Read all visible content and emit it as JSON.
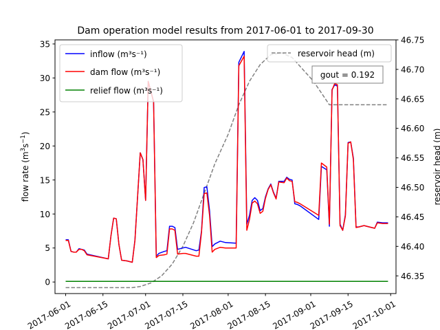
{
  "chart_data": {
    "type": "line",
    "title": "Dam operation model results from 2017-06-01 to 2017-09-30",
    "xlabel": "",
    "ylabel": "flow rate (m3s-1)",
    "ylabel_right": "reservoir head (m)",
    "xlim": [
      "2017-05-28",
      "2017-10-03"
    ],
    "ylim": [
      -1.7,
      35.6
    ],
    "ylim_right": [
      46.32,
      46.75
    ],
    "x_ticks": [
      "2017-06-01",
      "2017-06-15",
      "2017-07-01",
      "2017-07-15",
      "2017-08-01",
      "2017-08-15",
      "2017-09-01",
      "2017-09-15",
      "2017-10-01"
    ],
    "y_ticks": [
      "0",
      "5",
      "10",
      "15",
      "20",
      "25",
      "30",
      "35"
    ],
    "y_ticks_right": [
      "46.35",
      "46.40",
      "46.45",
      "46.50",
      "46.55",
      "46.60",
      "46.65",
      "46.70",
      "46.75"
    ],
    "annotation": "gout = 0.192",
    "legend_left_position": "top-left",
    "legend_right_position": "top-right",
    "grid": false,
    "series": [
      {
        "name": "inflow (m3s-1)",
        "legend_label": "inflow (m³s⁻¹)",
        "axis": "left",
        "color": "#0000ff",
        "style": "solid",
        "points": [
          [
            "2017-06-01",
            6.2
          ],
          [
            "2017-06-02",
            6.2
          ],
          [
            "2017-06-03",
            4.5
          ],
          [
            "2017-06-04",
            4.4
          ],
          [
            "2017-06-05",
            4.4
          ],
          [
            "2017-06-06",
            4.9
          ],
          [
            "2017-06-07",
            4.8
          ],
          [
            "2017-06-08",
            4.7
          ],
          [
            "2017-06-09",
            4.1
          ],
          [
            "2017-06-17",
            3.4
          ],
          [
            "2017-06-18",
            6.8
          ],
          [
            "2017-06-19",
            9.4
          ],
          [
            "2017-06-20",
            9.3
          ],
          [
            "2017-06-21",
            5.5
          ],
          [
            "2017-06-22",
            3.2
          ],
          [
            "2017-06-24",
            3.1
          ],
          [
            "2017-06-26",
            2.9
          ],
          [
            "2017-06-27",
            6.2
          ],
          [
            "2017-06-28",
            12.5
          ],
          [
            "2017-06-29",
            19.0
          ],
          [
            "2017-06-30",
            18.0
          ],
          [
            "2017-07-01",
            12.0
          ],
          [
            "2017-07-02",
            29.5
          ],
          [
            "2017-07-04",
            26.5
          ],
          [
            "2017-07-05",
            3.8
          ],
          [
            "2017-07-06",
            4.2
          ],
          [
            "2017-07-08",
            4.5
          ],
          [
            "2017-07-09",
            4.6
          ],
          [
            "2017-07-10",
            8.2
          ],
          [
            "2017-07-11",
            8.2
          ],
          [
            "2017-07-12",
            8.0
          ],
          [
            "2017-07-13",
            4.8
          ],
          [
            "2017-07-15",
            5.0
          ],
          [
            "2017-07-16",
            5.1
          ],
          [
            "2017-07-20",
            4.6
          ],
          [
            "2017-07-21",
            4.7
          ],
          [
            "2017-07-22",
            7.5
          ],
          [
            "2017-07-23",
            13.9
          ],
          [
            "2017-07-24",
            14.0
          ],
          [
            "2017-07-25",
            10.5
          ],
          [
            "2017-07-26",
            5.2
          ],
          [
            "2017-07-27",
            5.6
          ],
          [
            "2017-07-29",
            6.0
          ],
          [
            "2017-07-31",
            5.8
          ],
          [
            "2017-08-04",
            5.7
          ],
          [
            "2017-08-05",
            32.3
          ],
          [
            "2017-08-07",
            33.9
          ],
          [
            "2017-08-08",
            8.5
          ],
          [
            "2017-08-09",
            9.8
          ],
          [
            "2017-08-10",
            12.0
          ],
          [
            "2017-08-11",
            12.4
          ],
          [
            "2017-08-12",
            12.0
          ],
          [
            "2017-08-13",
            10.5
          ],
          [
            "2017-08-14",
            10.8
          ],
          [
            "2017-08-15",
            12.5
          ],
          [
            "2017-08-16",
            13.7
          ],
          [
            "2017-08-17",
            14.4
          ],
          [
            "2017-08-18",
            13.2
          ],
          [
            "2017-08-19",
            12.3
          ],
          [
            "2017-08-20",
            14.8
          ],
          [
            "2017-08-22",
            14.8
          ],
          [
            "2017-08-23",
            15.4
          ],
          [
            "2017-08-24",
            15.1
          ],
          [
            "2017-08-25",
            15.0
          ],
          [
            "2017-08-26",
            11.5
          ],
          [
            "2017-08-27",
            11.4
          ],
          [
            "2017-08-28",
            11.2
          ],
          [
            "2017-09-04",
            9.2
          ],
          [
            "2017-09-05",
            17.0
          ],
          [
            "2017-09-07",
            16.5
          ],
          [
            "2017-09-08",
            8.2
          ],
          [
            "2017-09-09",
            28.3
          ],
          [
            "2017-09-10",
            29.0
          ],
          [
            "2017-09-11",
            28.8
          ],
          [
            "2017-09-12",
            8.5
          ],
          [
            "2017-09-13",
            7.6
          ],
          [
            "2017-09-14",
            9.9
          ],
          [
            "2017-09-15",
            20.5
          ],
          [
            "2017-09-16",
            20.6
          ],
          [
            "2017-09-17",
            18.2
          ],
          [
            "2017-09-18",
            8.1
          ],
          [
            "2017-09-19",
            8.1
          ],
          [
            "2017-09-21",
            8.3
          ],
          [
            "2017-09-23",
            8.1
          ],
          [
            "2017-09-25",
            7.9
          ],
          [
            "2017-09-26",
            8.8
          ],
          [
            "2017-09-28",
            8.7
          ],
          [
            "2017-09-30",
            8.7
          ]
        ]
      },
      {
        "name": "dam flow (m3s-1)",
        "legend_label": "dam flow (m³s⁻¹)",
        "axis": "left",
        "color": "#ff0000",
        "style": "solid",
        "points": [
          [
            "2017-06-01",
            6.1
          ],
          [
            "2017-06-02",
            6.1
          ],
          [
            "2017-06-03",
            4.5
          ],
          [
            "2017-06-04",
            4.4
          ],
          [
            "2017-06-05",
            4.4
          ],
          [
            "2017-06-06",
            4.8
          ],
          [
            "2017-06-07",
            4.8
          ],
          [
            "2017-06-08",
            4.6
          ],
          [
            "2017-06-09",
            4.0
          ],
          [
            "2017-06-17",
            3.4
          ],
          [
            "2017-06-18",
            6.8
          ],
          [
            "2017-06-19",
            9.4
          ],
          [
            "2017-06-20",
            9.3
          ],
          [
            "2017-06-21",
            5.5
          ],
          [
            "2017-06-22",
            3.2
          ],
          [
            "2017-06-24",
            3.1
          ],
          [
            "2017-06-26",
            2.9
          ],
          [
            "2017-06-27",
            6.1
          ],
          [
            "2017-06-28",
            12.5
          ],
          [
            "2017-06-29",
            19.0
          ],
          [
            "2017-06-30",
            18.0
          ],
          [
            "2017-07-01",
            12.0
          ],
          [
            "2017-07-02",
            29.5
          ],
          [
            "2017-07-04",
            26.5
          ],
          [
            "2017-07-05",
            3.6
          ],
          [
            "2017-07-06",
            3.9
          ],
          [
            "2017-07-08",
            4.0
          ],
          [
            "2017-07-09",
            4.1
          ],
          [
            "2017-07-10",
            7.8
          ],
          [
            "2017-07-11",
            7.8
          ],
          [
            "2017-07-12",
            7.6
          ],
          [
            "2017-07-13",
            4.1
          ],
          [
            "2017-07-15",
            4.2
          ],
          [
            "2017-07-16",
            4.2
          ],
          [
            "2017-07-20",
            3.8
          ],
          [
            "2017-07-21",
            3.8
          ],
          [
            "2017-07-22",
            7.3
          ],
          [
            "2017-07-23",
            13.0
          ],
          [
            "2017-07-24",
            13.1
          ],
          [
            "2017-07-25",
            9.8
          ],
          [
            "2017-07-26",
            4.4
          ],
          [
            "2017-07-27",
            4.8
          ],
          [
            "2017-07-29",
            5.1
          ],
          [
            "2017-07-31",
            5.0
          ],
          [
            "2017-08-04",
            5.0
          ],
          [
            "2017-08-05",
            31.8
          ],
          [
            "2017-08-07",
            33.2
          ],
          [
            "2017-08-08",
            7.6
          ],
          [
            "2017-08-09",
            9.2
          ],
          [
            "2017-08-10",
            11.6
          ],
          [
            "2017-08-11",
            11.9
          ],
          [
            "2017-08-12",
            11.5
          ],
          [
            "2017-08-13",
            10.1
          ],
          [
            "2017-08-14",
            10.4
          ],
          [
            "2017-08-15",
            12.3
          ],
          [
            "2017-08-16",
            13.6
          ],
          [
            "2017-08-17",
            14.3
          ],
          [
            "2017-08-18",
            13.1
          ],
          [
            "2017-08-19",
            12.2
          ],
          [
            "2017-08-20",
            14.7
          ],
          [
            "2017-08-22",
            14.6
          ],
          [
            "2017-08-23",
            15.3
          ],
          [
            "2017-08-24",
            14.9
          ],
          [
            "2017-08-25",
            14.8
          ],
          [
            "2017-08-26",
            11.8
          ],
          [
            "2017-08-27",
            11.7
          ],
          [
            "2017-08-28",
            11.5
          ],
          [
            "2017-09-04",
            9.8
          ],
          [
            "2017-09-05",
            17.5
          ],
          [
            "2017-09-07",
            16.9
          ],
          [
            "2017-09-08",
            8.5
          ],
          [
            "2017-09-09",
            28.2
          ],
          [
            "2017-09-10",
            29.2
          ],
          [
            "2017-09-11",
            29.0
          ],
          [
            "2017-09-12",
            8.3
          ],
          [
            "2017-09-13",
            7.6
          ],
          [
            "2017-09-14",
            9.7
          ],
          [
            "2017-09-15",
            20.4
          ],
          [
            "2017-09-16",
            20.6
          ],
          [
            "2017-09-17",
            18.0
          ],
          [
            "2017-09-18",
            8.0
          ],
          [
            "2017-09-19",
            8.1
          ],
          [
            "2017-09-21",
            8.3
          ],
          [
            "2017-09-23",
            8.1
          ],
          [
            "2017-09-25",
            7.9
          ],
          [
            "2017-09-26",
            8.7
          ],
          [
            "2017-09-28",
            8.6
          ],
          [
            "2017-09-30",
            8.6
          ]
        ]
      },
      {
        "name": "relief flow (m3s-1)",
        "legend_label": "relief flow (m³s⁻¹)",
        "axis": "left",
        "color": "#008000",
        "style": "solid",
        "points": [
          [
            "2017-06-01",
            0.1
          ],
          [
            "2017-09-30",
            0.1
          ]
        ]
      },
      {
        "name": "reservoir head (m)",
        "legend_label": "reservoir head (m)",
        "axis": "right",
        "color": "#808080",
        "style": "dashed",
        "points": [
          [
            "2017-06-01",
            46.33
          ],
          [
            "2017-06-26",
            46.33
          ],
          [
            "2017-06-29",
            46.332
          ],
          [
            "2017-07-03",
            46.338
          ],
          [
            "2017-07-07",
            46.35
          ],
          [
            "2017-07-11",
            46.37
          ],
          [
            "2017-07-15",
            46.4
          ],
          [
            "2017-07-19",
            46.44
          ],
          [
            "2017-07-23",
            46.49
          ],
          [
            "2017-07-27",
            46.54
          ],
          [
            "2017-08-01",
            46.59
          ],
          [
            "2017-08-05",
            46.64
          ],
          [
            "2017-08-09",
            46.68
          ],
          [
            "2017-08-13",
            46.708
          ],
          [
            "2017-08-17",
            46.725
          ],
          [
            "2017-08-21",
            46.728
          ],
          [
            "2017-08-25",
            46.72
          ],
          [
            "2017-08-29",
            46.7
          ],
          [
            "2017-09-02",
            46.68
          ],
          [
            "2017-09-05",
            46.66
          ],
          [
            "2017-09-08",
            46.64
          ],
          [
            "2017-09-30",
            46.64
          ]
        ]
      }
    ]
  }
}
